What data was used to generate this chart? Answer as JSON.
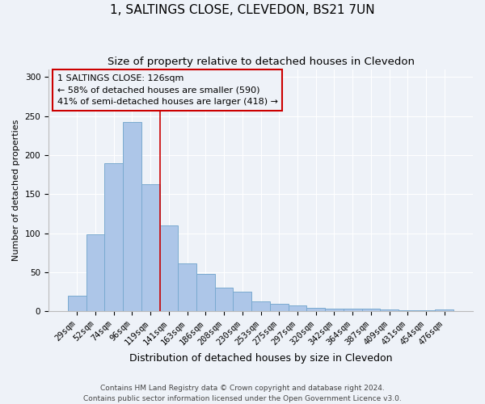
{
  "title": "1, SALTINGS CLOSE, CLEVEDON, BS21 7UN",
  "subtitle": "Size of property relative to detached houses in Clevedon",
  "xlabel": "Distribution of detached houses by size in Clevedon",
  "ylabel": "Number of detached properties",
  "categories": [
    "29sqm",
    "52sqm",
    "74sqm",
    "96sqm",
    "119sqm",
    "141sqm",
    "163sqm",
    "186sqm",
    "208sqm",
    "230sqm",
    "253sqm",
    "275sqm",
    "297sqm",
    "320sqm",
    "342sqm",
    "364sqm",
    "387sqm",
    "409sqm",
    "431sqm",
    "454sqm",
    "476sqm"
  ],
  "values": [
    20,
    99,
    190,
    242,
    163,
    110,
    61,
    48,
    30,
    25,
    13,
    10,
    8,
    4,
    3,
    3,
    3,
    2,
    1,
    1,
    2
  ],
  "bar_color": "#adc6e8",
  "bar_edge_color": "#7aaad0",
  "vline_color": "#cc0000",
  "vline_x_index": 4,
  "annotation_title": "1 SALTINGS CLOSE: 126sqm",
  "annotation_line1": "← 58% of detached houses are smaller (590)",
  "annotation_line2": "41% of semi-detached houses are larger (418) →",
  "annotation_box_color": "#cc0000",
  "ylim": [
    0,
    310
  ],
  "yticks": [
    0,
    50,
    100,
    150,
    200,
    250,
    300
  ],
  "footer1": "Contains HM Land Registry data © Crown copyright and database right 2024.",
  "footer2": "Contains public sector information licensed under the Open Government Licence v3.0.",
  "background_color": "#eef2f8",
  "title_fontsize": 11,
  "subtitle_fontsize": 9.5,
  "xlabel_fontsize": 9,
  "ylabel_fontsize": 8,
  "tick_fontsize": 7.5,
  "annotation_fontsize": 8,
  "footer_fontsize": 6.5
}
